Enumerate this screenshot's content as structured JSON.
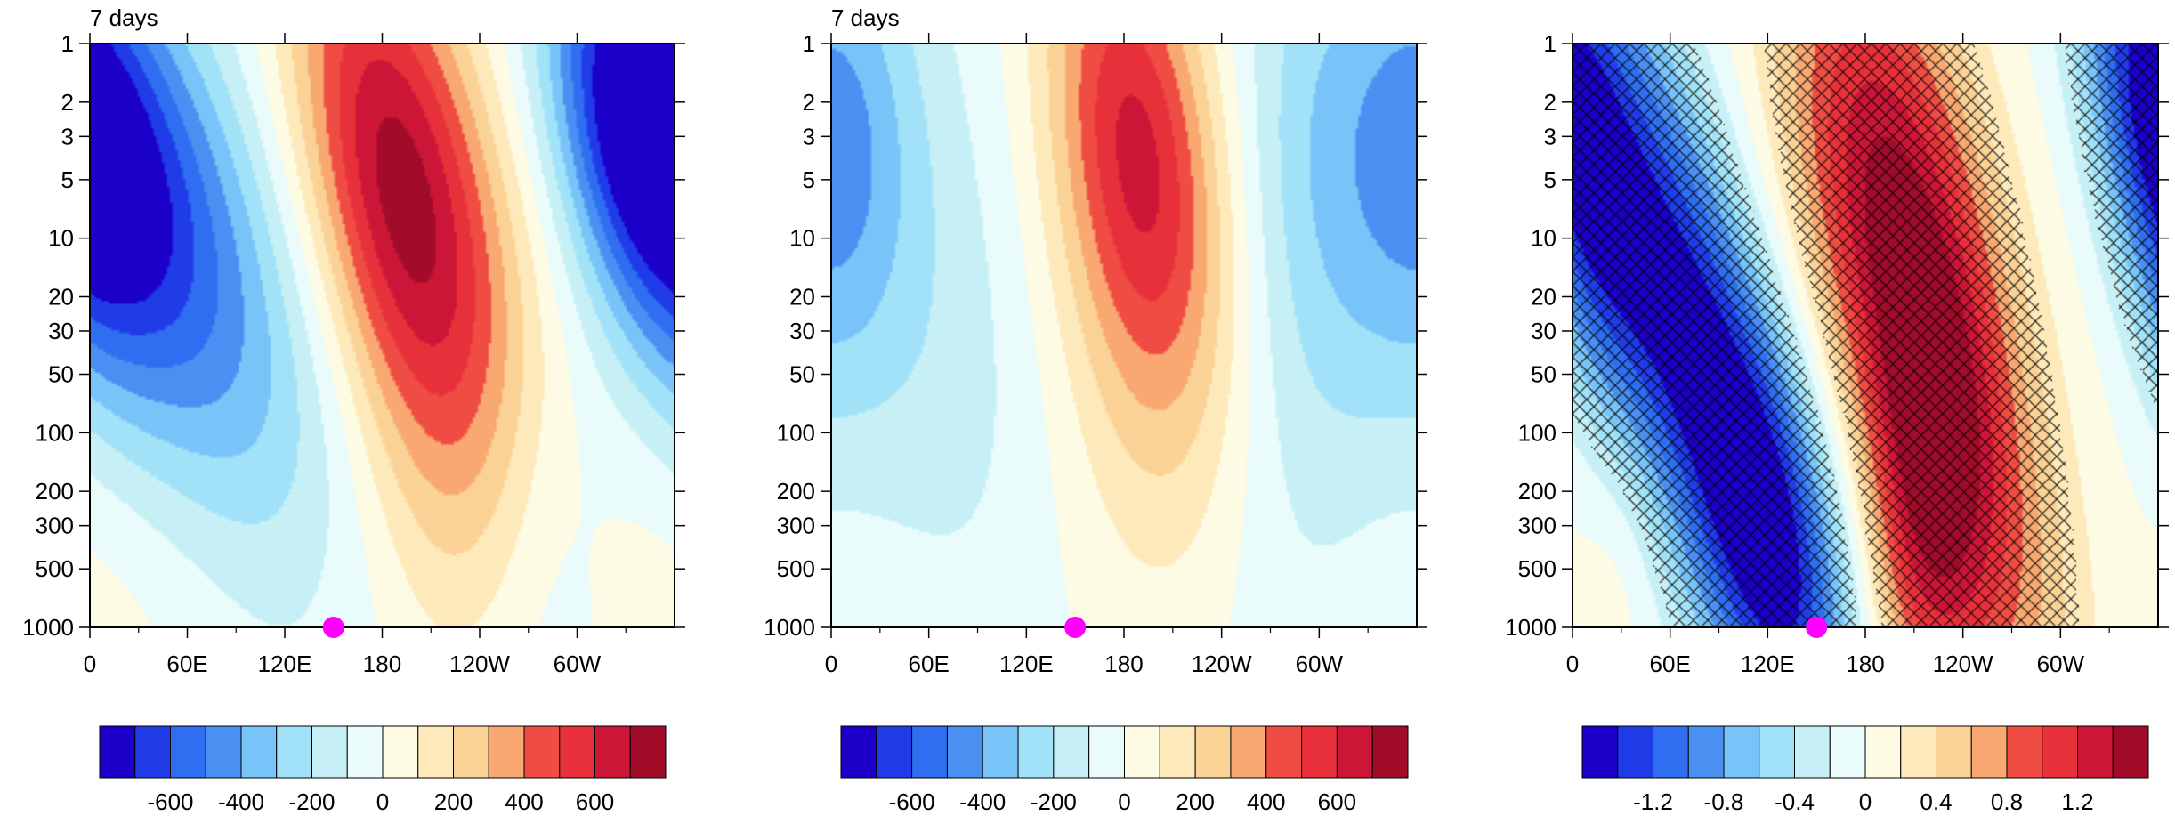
{
  "chart_data": [
    {
      "type": "heatmap",
      "title": "7 days",
      "x_tick_labels": [
        "0",
        "60E",
        "120E",
        "180",
        "120W",
        "60W"
      ],
      "x_ticks_deg": [
        0,
        60,
        120,
        180,
        240,
        300
      ],
      "xlim": [
        0,
        360
      ],
      "y_tick_labels": [
        "1",
        "2",
        "3",
        "5",
        "10",
        "20",
        "30",
        "50",
        "100",
        "200",
        "300",
        "500",
        "1000"
      ],
      "y_ticks": [
        1,
        2,
        3,
        5,
        10,
        20,
        30,
        50,
        100,
        200,
        300,
        500,
        1000
      ],
      "ylim": [
        1,
        1000
      ],
      "y_scale": "log",
      "y_reversed": true,
      "marker": {
        "x": 150,
        "y": 1000,
        "color": "#ff00ff"
      },
      "colorbar_labels": [
        "-600",
        "-400",
        "-200",
        "0",
        "200",
        "400",
        "600"
      ],
      "hatching": false,
      "fields": [
        {
          "amp": -580,
          "x": 20,
          "y": 4,
          "sx": 45,
          "sy": 0.9,
          "tilt": 26
        },
        {
          "amp": 650,
          "x": 185,
          "y": 4,
          "sx": 40,
          "sy": 0.95,
          "tilt": 20
        },
        {
          "amp": -600,
          "x": 335,
          "y": 3,
          "sx": 35,
          "sy": 0.8,
          "tilt": 20
        },
        {
          "amp": -240,
          "x": 105,
          "y": 60,
          "sx": 55,
          "sy": 1.2,
          "tilt": 15
        },
        {
          "amp": 250,
          "x": 220,
          "y": 50,
          "sx": 45,
          "sy": 1.0,
          "tilt": 12
        },
        {
          "amp": -120,
          "x": 280,
          "y": 500,
          "sx": 30,
          "sy": 0.8,
          "tilt": 0
        },
        {
          "amp": 60,
          "x": 60,
          "y": 700,
          "sx": 120,
          "sy": 0.6,
          "tilt": 0
        }
      ]
    },
    {
      "type": "heatmap",
      "title": "7 days",
      "x_tick_labels": [
        "0",
        "60E",
        "120E",
        "180",
        "120W",
        "60W"
      ],
      "x_ticks_deg": [
        0,
        60,
        120,
        180,
        240,
        300
      ],
      "xlim": [
        0,
        360
      ],
      "y_tick_labels": [
        "1",
        "2",
        "3",
        "5",
        "10",
        "20",
        "30",
        "50",
        "100",
        "200",
        "300",
        "500",
        "1000"
      ],
      "y_ticks": [
        1,
        2,
        3,
        5,
        10,
        20,
        30,
        50,
        100,
        200,
        300,
        500,
        1000
      ],
      "ylim": [
        1,
        1000
      ],
      "y_scale": "log",
      "y_reversed": true,
      "marker": {
        "x": 150,
        "y": 1000,
        "color": "#ff00ff"
      },
      "colorbar_labels": [
        "-600",
        "-400",
        "-200",
        "0",
        "200",
        "400",
        "600"
      ],
      "hatching": false,
      "fields": [
        {
          "amp": 520,
          "x": 188,
          "y": 3,
          "sx": 35,
          "sy": 0.9,
          "tilt": 15
        },
        {
          "amp": 200,
          "x": 195,
          "y": 30,
          "sx": 45,
          "sy": 1.1,
          "tilt": 10
        },
        {
          "amp": -260,
          "x": 320,
          "y": 3,
          "sx": 45,
          "sy": 1.0,
          "tilt": 5
        },
        {
          "amp": -210,
          "x": 10,
          "y": 3,
          "sx": 30,
          "sy": 0.8,
          "tilt": 0
        },
        {
          "amp": -160,
          "x": 60,
          "y": 30,
          "sx": 55,
          "sy": 1.5,
          "tilt": 10
        },
        {
          "amp": -130,
          "x": 280,
          "y": 100,
          "sx": 45,
          "sy": 1.4,
          "tilt": 0
        },
        {
          "amp": 40,
          "x": 20,
          "y": 700,
          "sx": 80,
          "sy": 0.6,
          "tilt": 0
        }
      ]
    },
    {
      "type": "heatmap",
      "title": "",
      "x_tick_labels": [
        "0",
        "60E",
        "120E",
        "180",
        "120W",
        "60W"
      ],
      "x_ticks_deg": [
        0,
        60,
        120,
        180,
        240,
        300
      ],
      "xlim": [
        0,
        360
      ],
      "y_tick_labels": [
        "1",
        "2",
        "3",
        "5",
        "10",
        "20",
        "30",
        "50",
        "100",
        "200",
        "300",
        "500",
        "1000"
      ],
      "y_ticks": [
        1,
        2,
        3,
        5,
        10,
        20,
        30,
        50,
        100,
        200,
        300,
        500,
        1000
      ],
      "ylim": [
        1,
        1000
      ],
      "y_scale": "log",
      "y_reversed": true,
      "marker": {
        "x": 150,
        "y": 1000,
        "color": "#ff00ff"
      },
      "colorbar_labels": [
        "-1.2",
        "-0.8",
        "-0.4",
        "0",
        "0.4",
        "0.8",
        "1.2"
      ],
      "hatching": true,
      "hatch_threshold": 0.3,
      "fields": [
        {
          "amp": -1.5,
          "x": 70,
          "y": 30,
          "sx": 40,
          "sy": 1.5,
          "tilt": 35
        },
        {
          "amp": 1.3,
          "x": 220,
          "y": 40,
          "sx": 40,
          "sy": 1.4,
          "tilt": 25
        },
        {
          "amp": 0.45,
          "x": 190,
          "y": 4,
          "sx": 45,
          "sy": 1.0,
          "tilt": 15
        },
        {
          "amp": 0.65,
          "x": 215,
          "y": 400,
          "sx": 25,
          "sy": 0.8,
          "tilt": 0
        },
        {
          "amp": -0.65,
          "x": 125,
          "y": 400,
          "sx": 30,
          "sy": 0.8,
          "tilt": 15
        },
        {
          "amp": -0.9,
          "x": 355,
          "y": 3,
          "sx": 25,
          "sy": 0.9,
          "tilt": 20
        },
        {
          "amp": 0.15,
          "x": 30,
          "y": 400,
          "sx": 20,
          "sy": 0.5,
          "tilt": 0
        }
      ]
    }
  ]
}
